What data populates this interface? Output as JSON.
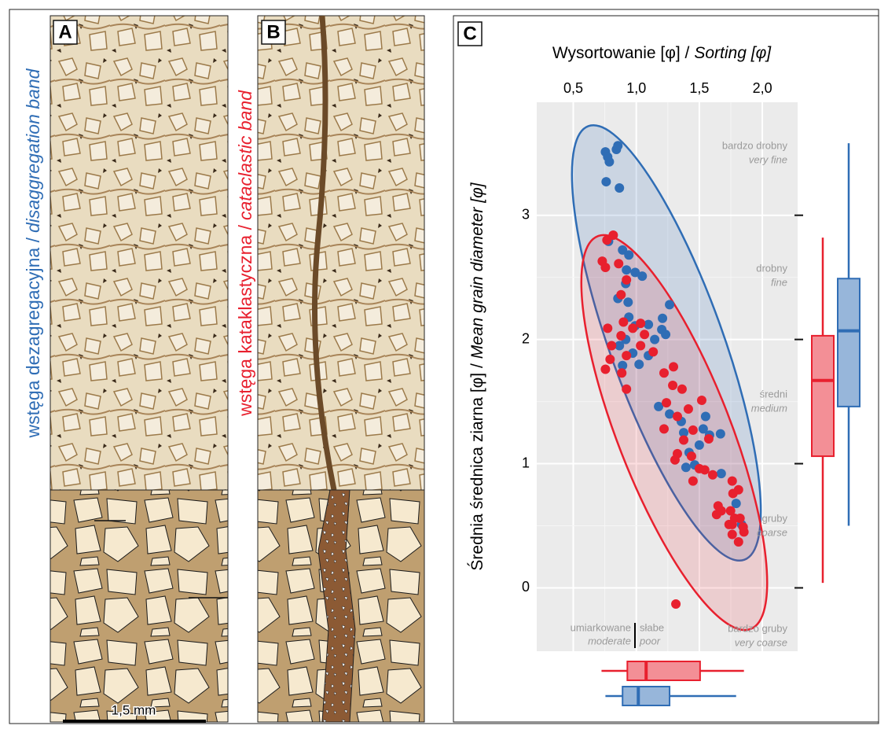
{
  "panels": [
    {
      "letter": "A",
      "label": "wstęga dezagregacyjna /",
      "label_en": "disaggregation band",
      "scale": "1,5 mm"
    },
    {
      "letter": "B",
      "label": "wstęga kataklastyczna /",
      "label_en": "cataclastic band"
    }
  ],
  "chart_data": {
    "type": "scatter",
    "letter": "C",
    "xlabel": "Wysortowanie [φ] /",
    "xlabel_en": "Sorting [φ]",
    "ylabel": "Średnia średnica ziarna [φ] /",
    "ylabel_en": "Mean grain diameter [φ]",
    "xlim": [
      0.21,
      2.28
    ],
    "ylim": [
      -0.51,
      3.91
    ],
    "xticks": [
      {
        "value": 0.5,
        "label": "0,5"
      },
      {
        "value": 1.0,
        "label": "1,0"
      },
      {
        "value": 1.5,
        "label": "1,5"
      },
      {
        "value": 2.0,
        "label": "2,0"
      }
    ],
    "yticks": [
      0,
      1,
      2,
      3
    ],
    "grid": true,
    "series": [
      {
        "color": "#2f6db5",
        "x": [
          0.755,
          0.842,
          0.854,
          0.786,
          0.773,
          0.761,
          0.866,
          0.78,
          0.891,
          0.941,
          0.922,
          0.991,
          1.047,
          0.916,
          0.854,
          0.935,
          0.941,
          0.991,
          1.096,
          1.208,
          1.264,
          1.202,
          1.233,
          1.146,
          0.916,
          0.866,
          0.891,
          1.022,
          0.972,
          1.096,
          1.177,
          1.264,
          1.357,
          1.376,
          1.55,
          1.531,
          1.581,
          1.5,
          1.419,
          1.463,
          1.394,
          1.668,
          1.674,
          1.792,
          1.835
        ],
        "y": [
          3.51,
          3.53,
          3.56,
          3.43,
          3.47,
          3.27,
          3.22,
          2.79,
          2.72,
          2.68,
          2.56,
          2.54,
          2.51,
          2.45,
          2.33,
          2.3,
          2.18,
          2.11,
          2.12,
          2.17,
          2.28,
          2.08,
          2.04,
          2.0,
          2.0,
          1.95,
          1.79,
          1.8,
          1.89,
          1.87,
          1.46,
          1.4,
          1.34,
          1.25,
          1.38,
          1.28,
          1.23,
          1.15,
          1.09,
          0.99,
          0.97,
          1.24,
          0.92,
          0.68,
          0.51
        ],
        "box_x": {
          "whisker_low": 0.755,
          "q1": 0.891,
          "median": 1.016,
          "q3": 1.264,
          "whisker_high": 1.792
        },
        "box_y": {
          "whisker_low": 0.5,
          "q1": 1.46,
          "median": 2.07,
          "q3": 2.49,
          "whisker_high": 3.58
        }
      },
      {
        "color": "#e8202e",
        "x": [
          0.767,
          0.817,
          0.73,
          0.755,
          0.86,
          0.922,
          0.879,
          0.773,
          0.898,
          0.972,
          1.034,
          1.065,
          0.879,
          0.804,
          1.034,
          0.922,
          0.755,
          0.792,
          0.885,
          0.922,
          1.134,
          1.295,
          1.289,
          1.239,
          1.363,
          1.413,
          1.326,
          1.22,
          1.376,
          1.45,
          1.519,
          1.438,
          1.307,
          1.5,
          1.543,
          1.45,
          1.606,
          1.767,
          1.811,
          1.748,
          1.674,
          1.637,
          1.78,
          1.736,
          1.823,
          1.854,
          1.761,
          1.811,
          1.848,
          1.314,
          1.22,
          1.575,
          1.761,
          1.761,
          1.649,
          1.326
        ],
        "y": [
          2.8,
          2.84,
          2.63,
          2.58,
          2.61,
          2.48,
          2.36,
          2.09,
          2.14,
          2.09,
          2.13,
          2.04,
          2.03,
          1.95,
          1.95,
          1.87,
          1.76,
          1.84,
          1.73,
          1.6,
          1.9,
          1.78,
          1.63,
          1.49,
          1.6,
          1.44,
          1.38,
          1.28,
          1.19,
          1.27,
          1.51,
          1.06,
          1.03,
          0.96,
          0.95,
          0.86,
          0.91,
          0.76,
          0.79,
          0.62,
          0.62,
          0.59,
          0.56,
          0.51,
          0.56,
          0.45,
          0.43,
          0.37,
          0.49,
          -0.13,
          1.73,
          1.2,
          0.51,
          0.86,
          0.66,
          1.08
        ],
        "box_x": {
          "whisker_low": 0.724,
          "q1": 0.929,
          "median": 1.078,
          "q3": 1.506,
          "whisker_high": 1.854
        },
        "box_y": {
          "whisker_low": 0.04,
          "q1": 1.06,
          "median": 1.67,
          "q3": 2.03,
          "whisker_high": 2.82
        }
      }
    ],
    "size_classes": [
      {
        "pl": "bardzo drobny",
        "en": "very fine"
      },
      {
        "pl": "drobny",
        "en": "fine"
      },
      {
        "pl": "średni",
        "en": "medium"
      },
      {
        "pl": "gruby",
        "en": "coarse"
      },
      {
        "pl": "bardzo gruby",
        "en": "very coarse"
      }
    ],
    "sorting_classes": [
      {
        "pl": "umiarkowane",
        "en": "moderate"
      },
      {
        "pl": "słabe",
        "en": "poor"
      }
    ]
  }
}
